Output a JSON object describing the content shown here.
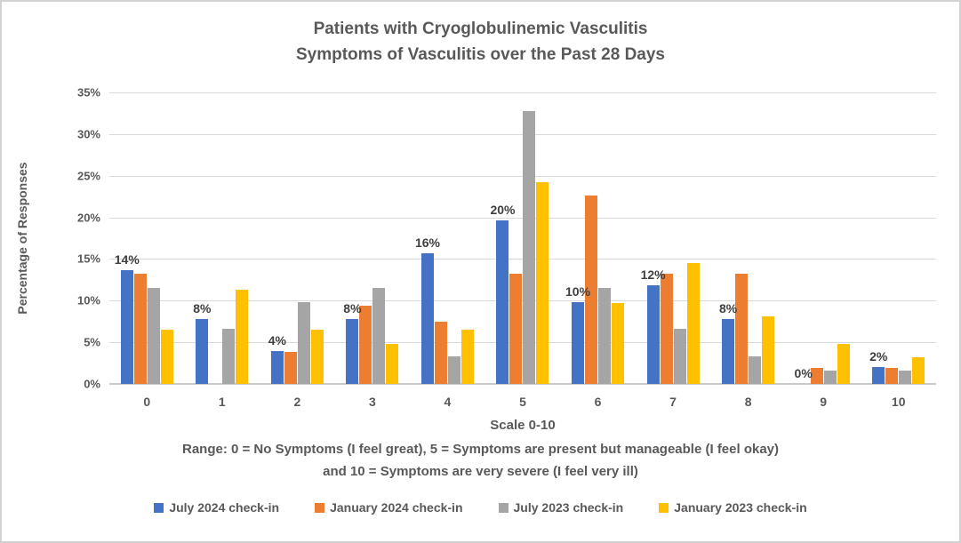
{
  "title": {
    "line1": "Patients with Cryoglobulinemic Vasculitis",
    "line2": "Symptoms of Vasculitis over the Past 28 Days"
  },
  "chart_data": {
    "type": "bar",
    "categories": [
      "0",
      "1",
      "2",
      "3",
      "4",
      "5",
      "6",
      "7",
      "8",
      "9",
      "10"
    ],
    "series": [
      {
        "name": "July 2024 check-in",
        "color": "#4472C4",
        "values": [
          13.7,
          7.8,
          3.9,
          7.8,
          15.7,
          19.6,
          9.8,
          11.8,
          7.8,
          0,
          2.0
        ],
        "data_labels": [
          "14%",
          "8%",
          "4%",
          "8%",
          "16%",
          "20%",
          "10%",
          "12%",
          "8%",
          "0%",
          "2%"
        ]
      },
      {
        "name": "January 2024 check-in",
        "color": "#ED7D31",
        "values": [
          13.2,
          0,
          3.8,
          9.4,
          7.5,
          13.2,
          22.6,
          13.2,
          13.2,
          1.9,
          1.9
        ]
      },
      {
        "name": "July 2023 check-in",
        "color": "#A5A5A5",
        "values": [
          11.5,
          6.6,
          9.8,
          11.5,
          3.3,
          32.8,
          11.5,
          6.6,
          3.3,
          1.6,
          1.6
        ]
      },
      {
        "name": "January 2023 check-in",
        "color": "#FFC000",
        "values": [
          6.5,
          11.3,
          6.5,
          4.8,
          6.5,
          24.2,
          9.7,
          14.5,
          8.1,
          4.8,
          3.2
        ]
      }
    ],
    "xlabel": "Scale 0-10",
    "ylabel": "Percentage of Responses",
    "ylim": [
      0,
      35
    ],
    "ytick_step": 5,
    "ytick_labels": [
      "0%",
      "5%",
      "10%",
      "15%",
      "20%",
      "25%",
      "30%",
      "35%"
    ],
    "grid": true,
    "legend_position": "bottom"
  },
  "footnote": {
    "line1": "Range: 0 = No Symptoms (I feel great), 5 = Symptoms are present but manageable (I feel okay)",
    "line2": "and 10 = Symptoms are very severe (I feel very ill)"
  },
  "colors": {
    "text": "#595959",
    "data_label": "#3F3F3F",
    "gridline": "#D9D9D9",
    "axis_line": "#C9C9C9",
    "background": "#FFFFFF",
    "border": "#D2D2D2"
  }
}
